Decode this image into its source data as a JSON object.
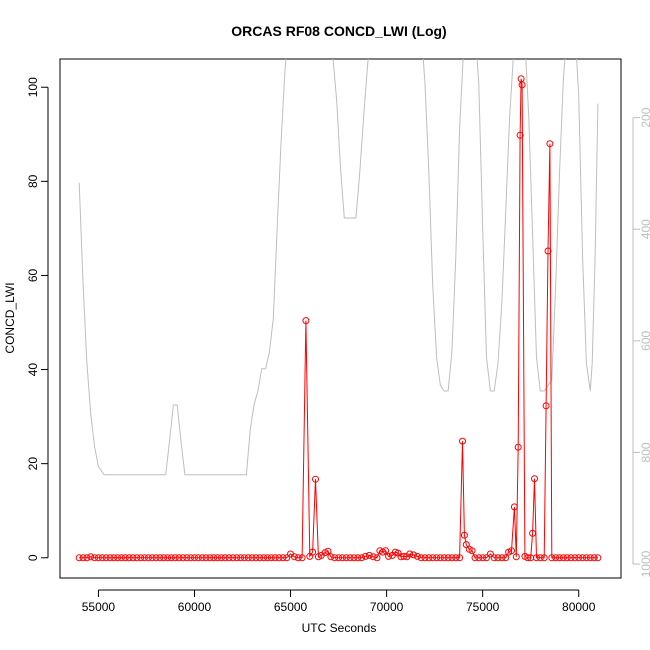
{
  "chart_data": {
    "type": "line",
    "title": "ORCAS RF08 CONCD_LWI (Log)",
    "xlabel": "UTC Seconds",
    "ylabel": "CONCD_LWI",
    "xlim": [
      53000,
      82200
    ],
    "ylim": [
      -4.3,
      106
    ],
    "x_ticks": [
      55000,
      60000,
      65000,
      70000,
      75000,
      80000
    ],
    "y_ticks": [
      0,
      20,
      40,
      60,
      80,
      100
    ],
    "y2_ticks": [
      200,
      400,
      600,
      800,
      1000
    ],
    "y2lim": [
      1025,
      95
    ],
    "y2_reversed": true,
    "grid": false,
    "colors": {
      "concd": "#ff0000",
      "pressure": "#bebebe",
      "axis": "#000000",
      "y2_axis": "#bdbdbd"
    },
    "series": [
      {
        "key": "concd",
        "points": [
          [
            54000,
            0
          ],
          [
            54200,
            0
          ],
          [
            54400,
            0
          ],
          [
            54600,
            0.2
          ],
          [
            54800,
            0
          ],
          [
            55000,
            0
          ],
          [
            55200,
            0
          ],
          [
            55400,
            0
          ],
          [
            55600,
            0
          ],
          [
            55800,
            0
          ],
          [
            56000,
            0
          ],
          [
            56200,
            0
          ],
          [
            56400,
            0
          ],
          [
            56600,
            0
          ],
          [
            56800,
            0
          ],
          [
            57000,
            0
          ],
          [
            57200,
            0
          ],
          [
            57400,
            0
          ],
          [
            57600,
            0
          ],
          [
            57800,
            0
          ],
          [
            58000,
            0
          ],
          [
            58200,
            0
          ],
          [
            58400,
            0
          ],
          [
            58600,
            0
          ],
          [
            58800,
            0
          ],
          [
            59000,
            0
          ],
          [
            59200,
            0
          ],
          [
            59400,
            0
          ],
          [
            59600,
            0
          ],
          [
            59800,
            0
          ],
          [
            60000,
            0
          ],
          [
            60200,
            0
          ],
          [
            60400,
            0
          ],
          [
            60600,
            0
          ],
          [
            60800,
            0
          ],
          [
            61000,
            0
          ],
          [
            61200,
            0
          ],
          [
            61400,
            0
          ],
          [
            61600,
            0
          ],
          [
            61800,
            0
          ],
          [
            62000,
            0
          ],
          [
            62200,
            0
          ],
          [
            62400,
            0
          ],
          [
            62600,
            0
          ],
          [
            62800,
            0
          ],
          [
            63000,
            0
          ],
          [
            63200,
            0
          ],
          [
            63400,
            0
          ],
          [
            63600,
            0
          ],
          [
            63800,
            0
          ],
          [
            64000,
            0
          ],
          [
            64200,
            0
          ],
          [
            64400,
            0
          ],
          [
            64600,
            0
          ],
          [
            64800,
            0
          ],
          [
            65000,
            0.8
          ],
          [
            65200,
            0.2
          ],
          [
            65400,
            0
          ],
          [
            65600,
            0
          ],
          [
            65800,
            50.4
          ],
          [
            66000,
            0.3
          ],
          [
            66150,
            1.2
          ],
          [
            66300,
            16.7
          ],
          [
            66450,
            0.2
          ],
          [
            66600,
            0.5
          ],
          [
            66800,
            1.1
          ],
          [
            66950,
            1.4
          ],
          [
            67100,
            0.2
          ],
          [
            67300,
            0
          ],
          [
            67500,
            0
          ],
          [
            67700,
            0
          ],
          [
            67900,
            0
          ],
          [
            68100,
            0
          ],
          [
            68300,
            0
          ],
          [
            68500,
            0
          ],
          [
            68700,
            0
          ],
          [
            68900,
            0.3
          ],
          [
            69100,
            0.5
          ],
          [
            69300,
            0.2
          ],
          [
            69500,
            0
          ],
          [
            69650,
            1.5
          ],
          [
            69800,
            1.2
          ],
          [
            69950,
            1.5
          ],
          [
            70100,
            0.3
          ],
          [
            70300,
            0.5
          ],
          [
            70450,
            1.2
          ],
          [
            70600,
            1
          ],
          [
            70750,
            0.2
          ],
          [
            70900,
            0.3
          ],
          [
            71050,
            0.2
          ],
          [
            71200,
            0.8
          ],
          [
            71400,
            0.6
          ],
          [
            71600,
            0.3
          ],
          [
            71800,
            0
          ],
          [
            72000,
            0
          ],
          [
            72200,
            0
          ],
          [
            72400,
            0
          ],
          [
            72600,
            0
          ],
          [
            72800,
            0
          ],
          [
            73000,
            0
          ],
          [
            73200,
            0
          ],
          [
            73400,
            0
          ],
          [
            73600,
            0
          ],
          [
            73800,
            0
          ],
          [
            73950,
            24.8
          ],
          [
            74050,
            4.8
          ],
          [
            74150,
            2.8
          ],
          [
            74300,
            1.8
          ],
          [
            74450,
            1.5
          ],
          [
            74600,
            0
          ],
          [
            74800,
            0
          ],
          [
            75000,
            0
          ],
          [
            75200,
            0
          ],
          [
            75400,
            0.8
          ],
          [
            75600,
            0
          ],
          [
            75800,
            0
          ],
          [
            76000,
            0
          ],
          [
            76200,
            0
          ],
          [
            76350,
            1.2
          ],
          [
            76500,
            1.5
          ],
          [
            76650,
            10.8
          ],
          [
            76750,
            0.2
          ],
          [
            76850,
            23.5
          ],
          [
            76950,
            89.8
          ],
          [
            77000,
            101.8
          ],
          [
            77050,
            100.5
          ],
          [
            77200,
            0.3
          ],
          [
            77350,
            0
          ],
          [
            77500,
            0
          ],
          [
            77600,
            5.2
          ],
          [
            77700,
            16.8
          ],
          [
            77800,
            0
          ],
          [
            78000,
            0
          ],
          [
            78200,
            0
          ],
          [
            78300,
            32.3
          ],
          [
            78400,
            65.2
          ],
          [
            78500,
            88
          ],
          [
            78600,
            0
          ],
          [
            78800,
            0
          ],
          [
            79000,
            0
          ],
          [
            79200,
            0
          ],
          [
            79400,
            0
          ],
          [
            79600,
            0
          ],
          [
            79800,
            0
          ],
          [
            80000,
            0
          ],
          [
            80200,
            0
          ],
          [
            80400,
            0
          ],
          [
            80600,
            0
          ],
          [
            80800,
            0
          ],
          [
            81000,
            0
          ]
        ]
      },
      {
        "key": "pressure",
        "points": [
          [
            54000,
            317
          ],
          [
            54200,
            500
          ],
          [
            54400,
            640
          ],
          [
            54600,
            730
          ],
          [
            54800,
            790
          ],
          [
            55000,
            825
          ],
          [
            55300,
            840
          ],
          [
            56000,
            840
          ],
          [
            57000,
            840
          ],
          [
            58000,
            840
          ],
          [
            58500,
            840
          ],
          [
            58700,
            780
          ],
          [
            58900,
            715
          ],
          [
            59100,
            715
          ],
          [
            59300,
            780
          ],
          [
            59500,
            840
          ],
          [
            60000,
            840
          ],
          [
            61000,
            840
          ],
          [
            62000,
            840
          ],
          [
            62700,
            840
          ],
          [
            62900,
            760
          ],
          [
            63100,
            715
          ],
          [
            63300,
            690
          ],
          [
            63500,
            650
          ],
          [
            63700,
            650
          ],
          [
            63900,
            620
          ],
          [
            64100,
            560
          ],
          [
            64300,
            400
          ],
          [
            64500,
            250
          ],
          [
            64700,
            120
          ],
          [
            64900,
            40
          ],
          [
            65100,
            40
          ],
          [
            65300,
            40
          ],
          [
            65500,
            40
          ],
          [
            65700,
            40
          ],
          [
            65900,
            40
          ],
          [
            66100,
            40
          ],
          [
            66300,
            60
          ],
          [
            66500,
            90
          ],
          [
            66600,
            40
          ],
          [
            66800,
            40
          ],
          [
            67000,
            40
          ],
          [
            67200,
            90
          ],
          [
            67400,
            170
          ],
          [
            67600,
            290
          ],
          [
            67800,
            380
          ],
          [
            68000,
            380
          ],
          [
            68200,
            380
          ],
          [
            68400,
            380
          ],
          [
            68600,
            300
          ],
          [
            68800,
            200
          ],
          [
            69000,
            110
          ],
          [
            69200,
            40
          ],
          [
            69400,
            40
          ],
          [
            69600,
            60
          ],
          [
            69800,
            90
          ],
          [
            70000,
            80
          ],
          [
            70100,
            40
          ],
          [
            70300,
            40
          ],
          [
            70400,
            80
          ],
          [
            70600,
            60
          ],
          [
            70800,
            60
          ],
          [
            71000,
            40
          ],
          [
            71200,
            40
          ],
          [
            71400,
            40
          ],
          [
            71600,
            40
          ],
          [
            71800,
            40
          ],
          [
            72000,
            140
          ],
          [
            72200,
            300
          ],
          [
            72400,
            500
          ],
          [
            72600,
            630
          ],
          [
            72800,
            680
          ],
          [
            73000,
            690
          ],
          [
            73200,
            690
          ],
          [
            73400,
            620
          ],
          [
            73600,
            450
          ],
          [
            73800,
            220
          ],
          [
            74000,
            80
          ],
          [
            74200,
            40
          ],
          [
            74400,
            40
          ],
          [
            74600,
            40
          ],
          [
            74800,
            140
          ],
          [
            75000,
            400
          ],
          [
            75200,
            630
          ],
          [
            75400,
            690
          ],
          [
            75600,
            690
          ],
          [
            75800,
            640
          ],
          [
            76000,
            530
          ],
          [
            76200,
            370
          ],
          [
            76400,
            200
          ],
          [
            76600,
            90
          ],
          [
            76800,
            40
          ],
          [
            77000,
            40
          ],
          [
            77200,
            60
          ],
          [
            77400,
            200
          ],
          [
            77600,
            410
          ],
          [
            77800,
            630
          ],
          [
            78000,
            690
          ],
          [
            78200,
            690
          ],
          [
            78400,
            680
          ],
          [
            78600,
            670
          ],
          [
            78800,
            500
          ],
          [
            79000,
            300
          ],
          [
            79200,
            130
          ],
          [
            79400,
            40
          ],
          [
            79600,
            40
          ],
          [
            79800,
            40
          ],
          [
            80000,
            160
          ],
          [
            80200,
            450
          ],
          [
            80400,
            640
          ],
          [
            80600,
            690
          ],
          [
            80700,
            640
          ],
          [
            80850,
            450
          ],
          [
            81000,
            175
          ]
        ]
      }
    ]
  }
}
